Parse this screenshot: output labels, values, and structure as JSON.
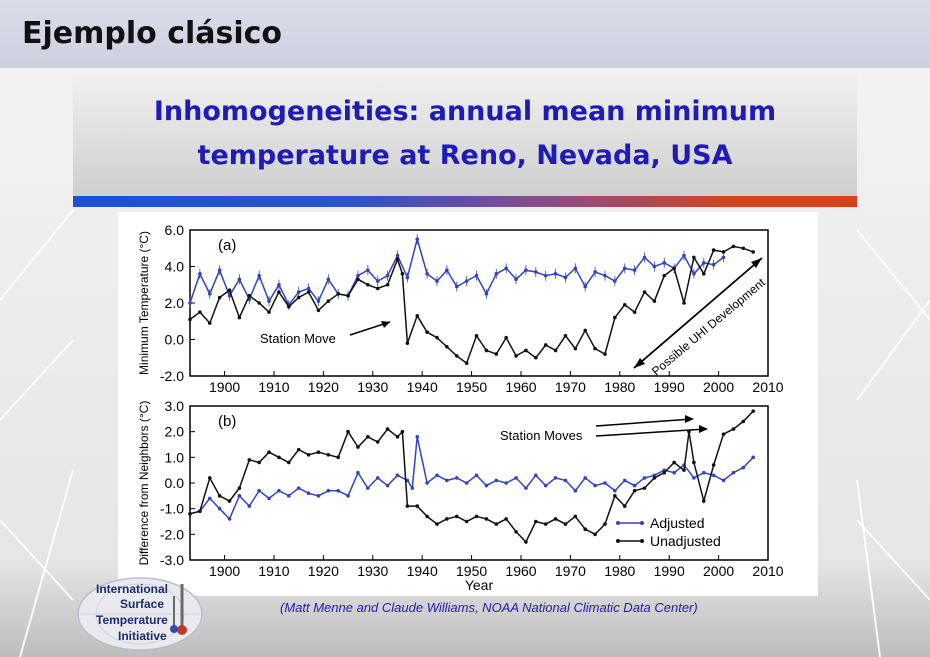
{
  "header": {
    "title": "Ejemplo clásico"
  },
  "slide": {
    "title_line1": "Inhomogeneities: annual mean minimum",
    "title_line2": "temperature at Reno, Nevada, USA",
    "citation": "(Matt Menne and Claude Williams, NOAA National Climatic Data Center)"
  },
  "logo": {
    "line1": "International",
    "line2": "Surface",
    "line3": "Temperature",
    "line4": "Initiative"
  },
  "colors": {
    "adjusted": "#3344bb",
    "unadjusted": "#111111",
    "title": "#1f1bb5"
  },
  "chart_data": [
    {
      "type": "line",
      "panel_label": "(a)",
      "ylabel": "Minimum Temperature (°C)",
      "xlabel": "",
      "xlim": [
        1893,
        2010
      ],
      "ylim": [
        -2.0,
        6.0
      ],
      "x_ticks": [
        1900,
        1910,
        1920,
        1930,
        1940,
        1950,
        1960,
        1970,
        1980,
        1990,
        2000,
        2010
      ],
      "y_ticks": [
        "-2.0",
        "0.0",
        "2.0",
        "4.0",
        "6.0"
      ],
      "annotations": [
        "Station Move",
        "Possible UHI Development"
      ],
      "series": [
        {
          "role": "adjusted",
          "x": [
            1893,
            1895,
            1897,
            1899,
            1901,
            1903,
            1905,
            1907,
            1909,
            1911,
            1913,
            1915,
            1917,
            1919,
            1921,
            1923,
            1925,
            1927,
            1929,
            1931,
            1933,
            1935,
            1937,
            1939,
            1941,
            1943,
            1945,
            1947,
            1949,
            1951,
            1953,
            1955,
            1957,
            1959,
            1961,
            1963,
            1965,
            1967,
            1969,
            1971,
            1973,
            1975,
            1977,
            1979,
            1981,
            1983,
            1985,
            1987,
            1989,
            1991,
            1993,
            1995,
            1997,
            1999,
            2001
          ],
          "y": [
            2.0,
            3.6,
            2.5,
            3.8,
            2.4,
            3.3,
            2.2,
            3.5,
            2.1,
            3.0,
            1.9,
            2.6,
            2.8,
            2.1,
            3.3,
            2.5,
            2.4,
            3.5,
            3.8,
            3.2,
            3.5,
            4.6,
            3.4,
            5.5,
            3.6,
            3.2,
            3.8,
            2.9,
            3.2,
            3.5,
            2.5,
            3.6,
            3.9,
            3.3,
            3.8,
            3.7,
            3.5,
            3.6,
            3.4,
            3.9,
            2.9,
            3.7,
            3.5,
            3.2,
            3.9,
            3.8,
            4.5,
            4.0,
            4.2,
            3.9,
            4.6,
            3.6,
            4.2,
            4.1,
            4.5
          ]
        },
        {
          "role": "unadjusted",
          "x": [
            1893,
            1895,
            1897,
            1899,
            1901,
            1903,
            1905,
            1907,
            1909,
            1911,
            1913,
            1915,
            1917,
            1919,
            1921,
            1923,
            1925,
            1927,
            1929,
            1931,
            1933,
            1935,
            1936,
            1937,
            1939,
            1941,
            1943,
            1945,
            1947,
            1949,
            1951,
            1953,
            1955,
            1957,
            1959,
            1961,
            1963,
            1965,
            1967,
            1969,
            1971,
            1973,
            1975,
            1977,
            1979,
            1981,
            1983,
            1985,
            1987,
            1989,
            1991,
            1993,
            1995,
            1997,
            1999,
            2001,
            2003,
            2005,
            2007
          ],
          "y": [
            1.1,
            1.5,
            0.9,
            2.3,
            2.7,
            1.2,
            2.4,
            2.0,
            1.5,
            2.6,
            1.8,
            2.3,
            2.6,
            1.6,
            2.1,
            2.5,
            2.4,
            3.3,
            3.0,
            2.8,
            3.0,
            4.4,
            3.6,
            -0.2,
            1.3,
            0.4,
            0.1,
            -0.4,
            -0.9,
            -1.3,
            0.2,
            -0.6,
            -0.8,
            0.1,
            -0.9,
            -0.6,
            -1.0,
            -0.3,
            -0.6,
            0.2,
            -0.5,
            0.5,
            -0.5,
            -0.8,
            1.2,
            1.9,
            1.5,
            2.6,
            2.1,
            3.5,
            3.9,
            2.0,
            4.5,
            3.6,
            4.9,
            4.8,
            5.1,
            5.0,
            4.8
          ]
        }
      ]
    },
    {
      "type": "line",
      "panel_label": "(b)",
      "ylabel": "Difference from Neighbors (°C)",
      "xlabel": "Year",
      "xlim": [
        1893,
        2010
      ],
      "ylim": [
        -3.0,
        3.0
      ],
      "x_ticks": [
        1900,
        1910,
        1920,
        1930,
        1940,
        1950,
        1960,
        1970,
        1980,
        1990,
        2000,
        2010
      ],
      "y_ticks": [
        "-3.0",
        "-2.0",
        "-1.0",
        "0.0",
        "1.0",
        "2.0",
        "3.0"
      ],
      "annotations": [
        "Station Moves"
      ],
      "legend": [
        "Adjusted",
        "Unadjusted"
      ],
      "legend_position": "bottom-right",
      "series": [
        {
          "role": "adjusted",
          "name": "Adjusted",
          "x": [
            1893,
            1895,
            1897,
            1899,
            1901,
            1903,
            1905,
            1907,
            1909,
            1911,
            1913,
            1915,
            1917,
            1919,
            1921,
            1923,
            1925,
            1927,
            1929,
            1931,
            1933,
            1935,
            1937,
            1938,
            1939,
            1941,
            1943,
            1945,
            1947,
            1949,
            1951,
            1953,
            1955,
            1957,
            1959,
            1961,
            1963,
            1965,
            1967,
            1969,
            1971,
            1973,
            1975,
            1977,
            1979,
            1981,
            1983,
            1985,
            1987,
            1989,
            1991,
            1993,
            1995,
            1997,
            1999,
            2001,
            2003,
            2005,
            2007
          ],
          "y": [
            -1.2,
            -1.1,
            -0.6,
            -1.0,
            -1.4,
            -0.5,
            -0.9,
            -0.3,
            -0.6,
            -0.3,
            -0.5,
            -0.2,
            -0.4,
            -0.5,
            -0.3,
            -0.3,
            -0.5,
            0.4,
            -0.2,
            0.2,
            -0.1,
            0.3,
            0.1,
            -0.2,
            1.8,
            0.0,
            0.3,
            0.1,
            0.2,
            0.0,
            0.3,
            -0.1,
            0.1,
            0.0,
            0.2,
            -0.2,
            0.3,
            -0.1,
            0.2,
            0.1,
            -0.3,
            0.2,
            -0.1,
            0.0,
            -0.3,
            0.1,
            -0.1,
            0.2,
            0.3,
            0.5,
            0.4,
            0.7,
            0.2,
            0.4,
            0.3,
            0.1,
            0.4,
            0.6,
            1.0
          ]
        },
        {
          "role": "unadjusted",
          "name": "Unadjusted",
          "x": [
            1893,
            1895,
            1897,
            1899,
            1901,
            1903,
            1905,
            1907,
            1909,
            1911,
            1913,
            1915,
            1917,
            1919,
            1921,
            1923,
            1925,
            1927,
            1929,
            1931,
            1933,
            1935,
            1936,
            1937,
            1939,
            1941,
            1943,
            1945,
            1947,
            1949,
            1951,
            1953,
            1955,
            1957,
            1959,
            1961,
            1963,
            1965,
            1967,
            1969,
            1971,
            1973,
            1975,
            1977,
            1979,
            1981,
            1983,
            1985,
            1987,
            1989,
            1991,
            1993,
            1994,
            1995,
            1997,
            1999,
            2001,
            2003,
            2005,
            2007
          ],
          "y": [
            -1.2,
            -1.1,
            0.2,
            -0.5,
            -0.7,
            -0.2,
            0.9,
            0.8,
            1.2,
            1.0,
            0.8,
            1.3,
            1.1,
            1.2,
            1.1,
            1.0,
            2.0,
            1.4,
            1.8,
            1.6,
            2.1,
            1.8,
            2.0,
            -0.9,
            -0.9,
            -1.3,
            -1.6,
            -1.4,
            -1.3,
            -1.5,
            -1.3,
            -1.4,
            -1.6,
            -1.4,
            -1.9,
            -2.3,
            -1.5,
            -1.6,
            -1.4,
            -1.6,
            -1.3,
            -1.8,
            -2.0,
            -1.6,
            -0.5,
            -0.9,
            -0.3,
            -0.2,
            0.2,
            0.4,
            0.8,
            0.5,
            2.0,
            0.8,
            -0.7,
            0.7,
            1.9,
            2.1,
            2.4,
            2.8
          ]
        }
      ]
    }
  ]
}
